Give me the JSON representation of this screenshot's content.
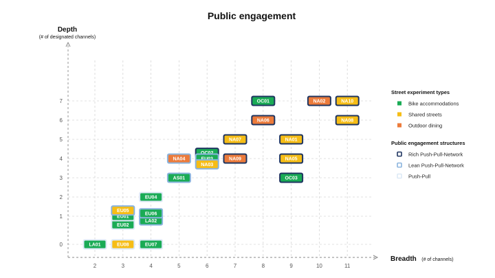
{
  "chart_data": {
    "type": "scatter",
    "title": "Public engagement",
    "ylabel": "Depth",
    "ylabel_sub": "(# of designated channels)",
    "xlabel": "Breadth",
    "xlabel_sub": "(# of channels)",
    "x_ticks": [
      2,
      3,
      4,
      5,
      6,
      7,
      8,
      9,
      10,
      11
    ],
    "y_ticks": [
      0,
      1,
      2,
      3,
      4,
      5,
      6,
      7
    ],
    "grid": true,
    "legend_position": "right",
    "type_colors": {
      "bike": "#1aab55",
      "shared": "#f6bd16",
      "dining": "#ec7b3b"
    },
    "structure_colors": {
      "rich": "#1f3560",
      "lean": "#8ab4de",
      "push": "#dde9f6"
    },
    "legend": {
      "types_title": "Street experiment types",
      "types": [
        {
          "key": "bike",
          "label": "Bike accommodations"
        },
        {
          "key": "shared",
          "label": "Shared streets"
        },
        {
          "key": "dining",
          "label": "Outdoor dining"
        }
      ],
      "structures_title": "Public engagement structures",
      "structures": [
        {
          "key": "rich",
          "label": "Rich Push-Pull-Network"
        },
        {
          "key": "lean",
          "label": "Lean Push-Pull-Network"
        },
        {
          "key": "push",
          "label": "Push-Pull"
        }
      ]
    },
    "points": [
      {
        "label": "LA01",
        "x": 2,
        "y": 0,
        "type": "bike",
        "structure": "push"
      },
      {
        "label": "EU08",
        "x": 3,
        "y": 0,
        "type": "shared",
        "structure": "push"
      },
      {
        "label": "EU07",
        "x": 4,
        "y": 0,
        "type": "bike",
        "structure": "push"
      },
      {
        "label": "EU02",
        "x": 3,
        "y": 0.7,
        "type": "bike",
        "structure": "push"
      },
      {
        "label": "EU01",
        "x": 3,
        "y": 1,
        "type": "bike",
        "structure": "push"
      },
      {
        "label": "EU05",
        "x": 3,
        "y": 1.3,
        "type": "shared",
        "structure": "lean"
      },
      {
        "label": "LA02",
        "x": 4,
        "y": 0.85,
        "type": "bike",
        "structure": "lean"
      },
      {
        "label": "EU06",
        "x": 4,
        "y": 1.15,
        "type": "bike",
        "structure": "lean"
      },
      {
        "label": "EU04",
        "x": 4,
        "y": 2,
        "type": "bike",
        "structure": "push"
      },
      {
        "label": "AS01",
        "x": 5,
        "y": 3,
        "type": "bike",
        "structure": "lean"
      },
      {
        "label": "NA04",
        "x": 5,
        "y": 4,
        "type": "dining",
        "structure": "lean"
      },
      {
        "label": "OC02",
        "x": 6,
        "y": 4.3,
        "type": "bike",
        "structure": "rich"
      },
      {
        "label": "EU03",
        "x": 6,
        "y": 4,
        "type": "bike",
        "structure": "lean"
      },
      {
        "label": "NA03",
        "x": 6,
        "y": 3.7,
        "type": "shared",
        "structure": "lean"
      },
      {
        "label": "NA09",
        "x": 7,
        "y": 4,
        "type": "dining",
        "structure": "rich"
      },
      {
        "label": "NA07",
        "x": 7,
        "y": 5,
        "type": "shared",
        "structure": "rich"
      },
      {
        "label": "OC01",
        "x": 8,
        "y": 7,
        "type": "bike",
        "structure": "rich"
      },
      {
        "label": "NA06",
        "x": 8,
        "y": 6,
        "type": "dining",
        "structure": "rich"
      },
      {
        "label": "NA01",
        "x": 9,
        "y": 5,
        "type": "shared",
        "structure": "rich"
      },
      {
        "label": "NA05",
        "x": 9,
        "y": 4,
        "type": "shared",
        "structure": "rich"
      },
      {
        "label": "OC03",
        "x": 9,
        "y": 3,
        "type": "bike",
        "structure": "rich"
      },
      {
        "label": "NA02",
        "x": 10,
        "y": 7,
        "type": "dining",
        "structure": "rich"
      },
      {
        "label": "NA10",
        "x": 11,
        "y": 7,
        "type": "shared",
        "structure": "rich"
      },
      {
        "label": "NA08",
        "x": 11,
        "y": 6,
        "type": "shared",
        "structure": "rich"
      }
    ]
  }
}
